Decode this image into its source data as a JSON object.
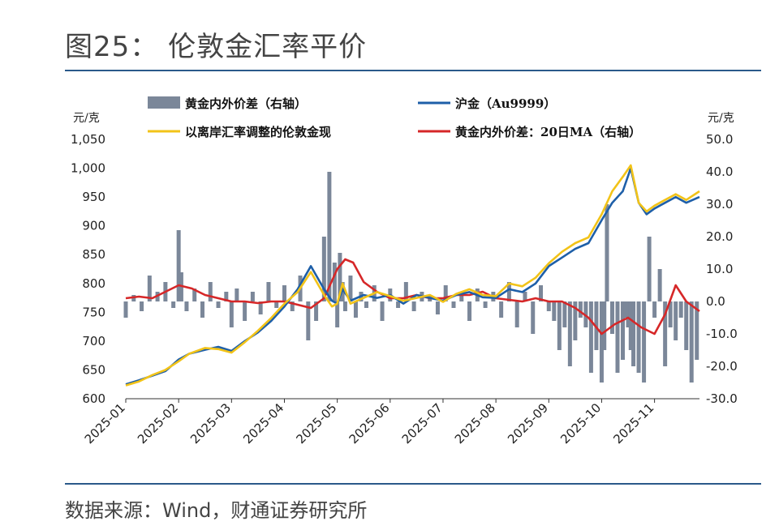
{
  "figure": {
    "title": "图25：  伦敦金汇率平价",
    "source": "数据来源：Wind，财通证券研究所"
  },
  "colors": {
    "bar": "#7b8799",
    "sh_gold": "#1e5fa8",
    "london_gold": "#f2c318",
    "ma20": "#d62728",
    "rule": "#2b5a8a"
  },
  "chart_data": {
    "type": "bar+line",
    "left_axis": {
      "unit": "元/克",
      "ylim": [
        600,
        1050
      ],
      "ticks": [
        "600",
        "650",
        "700",
        "750",
        "800",
        "850",
        "900",
        "950",
        "1,000",
        "1,050"
      ]
    },
    "right_axis": {
      "unit": "元/克",
      "ylim": [
        -30,
        50
      ],
      "ticks": [
        "-30.0",
        "-20.0",
        "-10.0",
        "0.0",
        "10.0",
        "20.0",
        "30.0",
        "40.0",
        "50.0"
      ]
    },
    "x_ticks": [
      "2025-01",
      "2025-02",
      "2025-03",
      "2025-04",
      "2025-05",
      "2025-06",
      "2025-07",
      "2025-08",
      "2025-09",
      "2025-10",
      "2025-11"
    ],
    "x_range": [
      0,
      10.85
    ],
    "legend": [
      {
        "label": "黄金内外价差（右轴）",
        "kind": "bar",
        "color": "#7b8799"
      },
      {
        "label": "沪金（Au9999）",
        "kind": "line",
        "color": "#1e5fa8"
      },
      {
        "label": "以离岸汇率调整的伦敦金现",
        "kind": "line",
        "color": "#f2c318"
      },
      {
        "label": "黄金内外价差：20日MA（右轴）",
        "kind": "line",
        "color": "#d62728"
      }
    ],
    "series": [
      {
        "name": "沪金（Au9999）",
        "axis": "left",
        "x": [
          0,
          0.25,
          0.5,
          0.75,
          1.0,
          1.2,
          1.5,
          1.75,
          2.0,
          2.25,
          2.5,
          2.75,
          3.0,
          3.25,
          3.5,
          3.75,
          3.9,
          4.0,
          4.1,
          4.25,
          4.5,
          4.75,
          5.0,
          5.25,
          5.5,
          5.75,
          6.0,
          6.25,
          6.5,
          6.75,
          7.0,
          7.25,
          7.5,
          7.75,
          8.0,
          8.25,
          8.5,
          8.75,
          9.0,
          9.2,
          9.4,
          9.55,
          9.7,
          9.85,
          10.0,
          10.2,
          10.4,
          10.6,
          10.85
        ],
        "values": [
          625,
          632,
          640,
          648,
          668,
          678,
          685,
          690,
          683,
          700,
          715,
          735,
          760,
          790,
          830,
          790,
          770,
          765,
          790,
          770,
          780,
          775,
          780,
          765,
          780,
          775,
          770,
          780,
          785,
          776,
          775,
          790,
          785,
          800,
          830,
          845,
          860,
          870,
          910,
          940,
          960,
          1000,
          940,
          920,
          930,
          940,
          950,
          940,
          950
        ]
      },
      {
        "name": "以离岸汇率调整的伦敦金现",
        "axis": "left",
        "x": [
          0,
          0.25,
          0.5,
          0.75,
          1.0,
          1.2,
          1.5,
          1.75,
          2.0,
          2.25,
          2.5,
          2.75,
          3.0,
          3.25,
          3.5,
          3.75,
          3.9,
          4.0,
          4.1,
          4.25,
          4.5,
          4.75,
          5.0,
          5.25,
          5.5,
          5.75,
          6.0,
          6.25,
          6.5,
          6.75,
          7.0,
          7.25,
          7.5,
          7.75,
          8.0,
          8.25,
          8.5,
          8.75,
          9.0,
          9.2,
          9.4,
          9.55,
          9.7,
          9.85,
          10.0,
          10.2,
          10.4,
          10.6,
          10.85
        ],
        "values": [
          623,
          630,
          641,
          650,
          665,
          678,
          688,
          686,
          680,
          698,
          718,
          740,
          765,
          785,
          820,
          780,
          760,
          765,
          800,
          765,
          775,
          785,
          778,
          770,
          775,
          780,
          768,
          782,
          790,
          780,
          778,
          800,
          795,
          810,
          835,
          855,
          870,
          880,
          920,
          960,
          985,
          1005,
          940,
          925,
          935,
          945,
          955,
          945,
          960
        ]
      },
      {
        "name": "黄金内外价差：20日MA（右轴）",
        "axis": "right",
        "x": [
          0,
          0.25,
          0.5,
          0.75,
          1.0,
          1.25,
          1.5,
          1.75,
          2.0,
          2.25,
          2.5,
          2.75,
          3.0,
          3.25,
          3.5,
          3.75,
          4.0,
          4.15,
          4.3,
          4.5,
          4.75,
          5.0,
          5.25,
          5.5,
          5.75,
          6.0,
          6.25,
          6.5,
          6.75,
          7.0,
          7.25,
          7.5,
          7.75,
          8.0,
          8.25,
          8.5,
          8.75,
          9.0,
          9.25,
          9.5,
          9.75,
          10.0,
          10.2,
          10.4,
          10.6,
          10.85
        ],
        "values": [
          1,
          1.5,
          1,
          3,
          5,
          4,
          2,
          1,
          0,
          0,
          -0.5,
          0,
          0,
          -1,
          -2,
          1,
          10,
          13,
          12,
          6,
          3,
          1,
          1,
          2,
          1,
          1,
          2,
          2,
          3,
          1,
          0.5,
          0,
          1,
          0,
          0,
          -2,
          -5,
          -10,
          -7,
          -5,
          -8,
          -10,
          -4,
          5,
          0,
          -3
        ]
      },
      {
        "name": "黄金内外价差（右轴）",
        "axis": "right",
        "kind": "bar",
        "x": [
          0,
          0.15,
          0.3,
          0.45,
          0.6,
          0.75,
          0.9,
          1.0,
          1.05,
          1.15,
          1.3,
          1.45,
          1.6,
          1.75,
          1.9,
          2.0,
          2.1,
          2.25,
          2.4,
          2.55,
          2.7,
          2.85,
          3.0,
          3.15,
          3.3,
          3.45,
          3.6,
          3.75,
          3.85,
          3.95,
          4.0,
          4.05,
          4.1,
          4.15,
          4.25,
          4.35,
          4.45,
          4.55,
          4.7,
          4.85,
          5.0,
          5.15,
          5.3,
          5.45,
          5.6,
          5.75,
          5.9,
          6.05,
          6.2,
          6.35,
          6.5,
          6.65,
          6.8,
          6.95,
          7.1,
          7.25,
          7.4,
          7.55,
          7.7,
          7.85,
          8.0,
          8.1,
          8.2,
          8.3,
          8.4,
          8.5,
          8.6,
          8.7,
          8.8,
          8.9,
          9.0,
          9.05,
          9.1,
          9.2,
          9.3,
          9.4,
          9.45,
          9.5,
          9.55,
          9.6,
          9.7,
          9.8,
          9.9,
          10.0,
          10.1,
          10.2,
          10.3,
          10.4,
          10.5,
          10.6,
          10.7,
          10.8
        ],
        "values": [
          -5,
          2,
          -3,
          8,
          3,
          6,
          -2,
          22,
          9,
          -3,
          4,
          -5,
          6,
          -2,
          3,
          -8,
          4,
          -6,
          3,
          -4,
          6,
          -2,
          5,
          -3,
          8,
          -12,
          -6,
          20,
          40,
          12,
          -8,
          15,
          6,
          -3,
          8,
          -5,
          3,
          -2,
          5,
          -6,
          4,
          -2,
          6,
          -3,
          3,
          2,
          -4,
          5,
          -2,
          3,
          -6,
          4,
          -2,
          3,
          -5,
          6,
          -8,
          3,
          -10,
          5,
          -3,
          -6,
          -15,
          -8,
          -20,
          -12,
          -5,
          -8,
          -22,
          -15,
          -25,
          -15,
          30,
          -10,
          -22,
          -18,
          -5,
          -8,
          -15,
          -20,
          -22,
          -25,
          20,
          -5,
          10,
          -20,
          -8,
          -12,
          -5,
          -15,
          -25,
          -18
        ]
      }
    ]
  }
}
